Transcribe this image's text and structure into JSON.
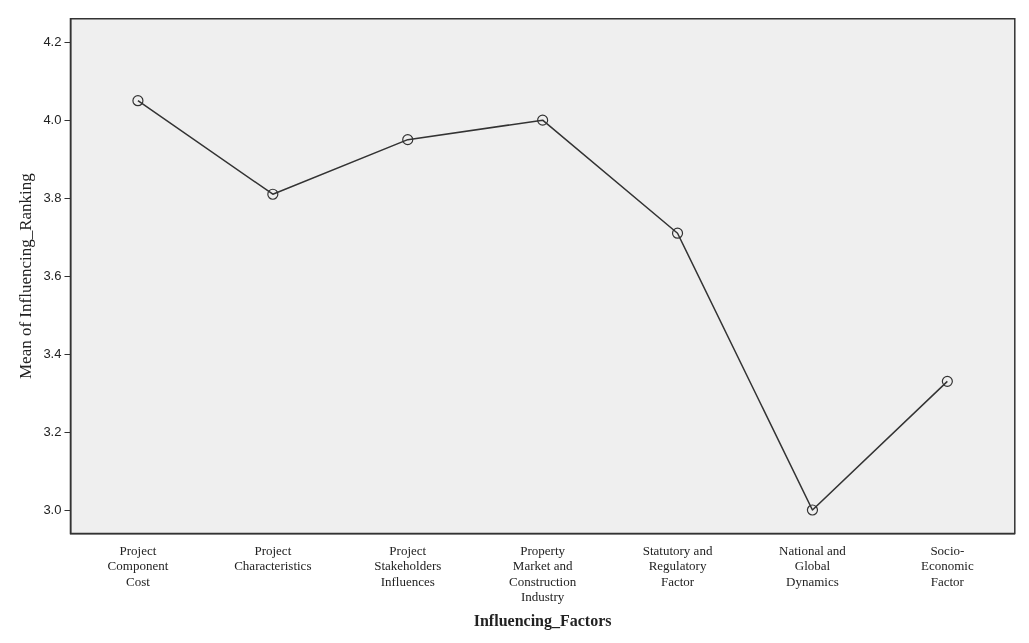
{
  "chart_data": {
    "type": "line",
    "xlabel": "Influencing_Factors",
    "ylabel": "Mean of Influencing_Ranking",
    "categories": [
      "Project Component Cost",
      "Project Characteristics",
      "Project Stakeholders Influences",
      "Property Market and Construction Industry",
      "Statutory and Regulatory Factor",
      "National and Global Dynamics",
      "Socio-Economic Factor"
    ],
    "series": [
      {
        "color": "#333333",
        "values": [
          4.05,
          3.81,
          3.95,
          4.0,
          3.71,
          3.0,
          3.33
        ]
      }
    ],
    "ylim": [
      2.94,
      4.26
    ],
    "yticks": [
      {
        "value": 3,
        "label": "3.0"
      },
      3.2,
      3.4,
      3.6,
      3.8,
      {
        "value": 4,
        "label": "4.0"
      },
      4.2
    ],
    "grid": false,
    "legend": false,
    "marker": "circle",
    "line_style": "solid"
  }
}
